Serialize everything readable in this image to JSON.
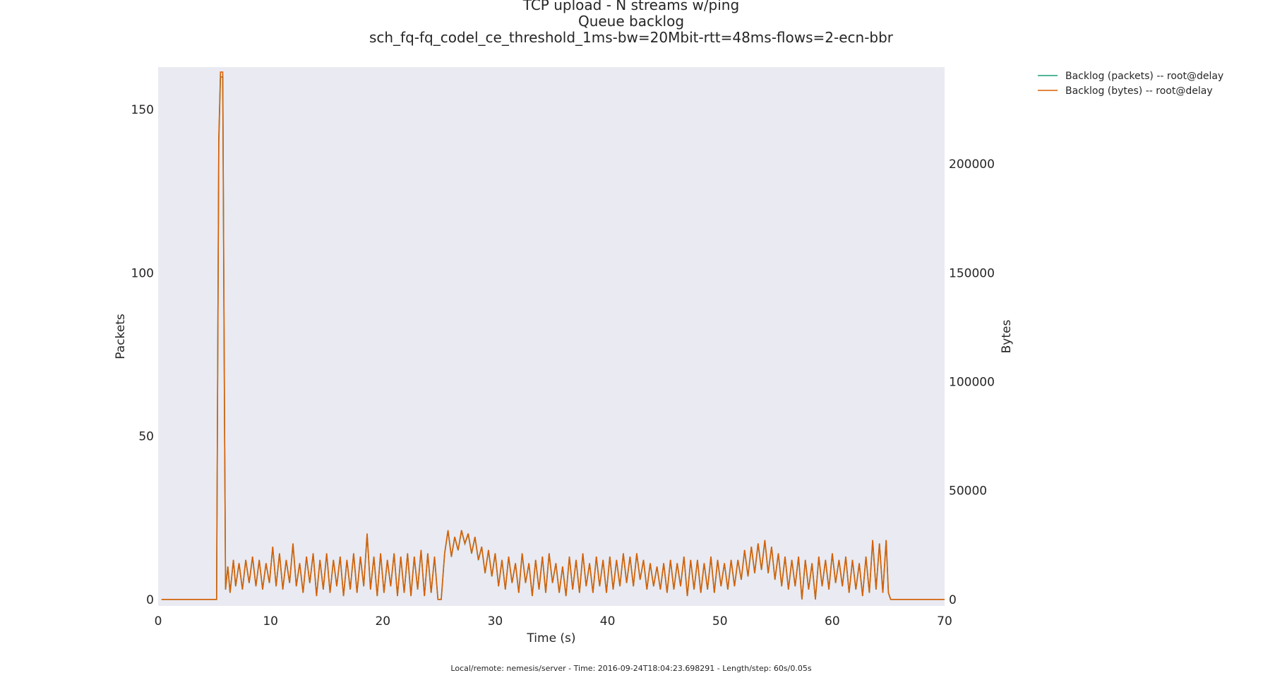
{
  "chart_data": {
    "type": "line",
    "title_lines": [
      "TCP upload - N streams w/ping",
      "Queue backlog",
      "sch_fq-fq_codel_ce_threshold_1ms-bw=20Mbit-rtt=48ms-flows=2-ecn-bbr"
    ],
    "xlabel": "Time (s)",
    "ylabel_left": "Packets",
    "ylabel_right": "Bytes",
    "xlim": [
      0,
      70
    ],
    "ylim_left": [
      -2,
      163
    ],
    "ylim_right": [
      -3000,
      244500
    ],
    "x_ticks": [
      "0",
      "10",
      "20",
      "30",
      "40",
      "50",
      "60",
      "70"
    ],
    "y_ticks_left": [
      "0",
      "50",
      "100",
      "150"
    ],
    "y_ticks_right": [
      "0",
      "50000",
      "100000",
      "150000",
      "200000"
    ],
    "grid": false,
    "background": "#eaeaf2",
    "legend_position": "outside-top-right",
    "series": [
      {
        "name": "Backlog (packets) -- root@delay",
        "axis": "left",
        "color": "#1b9e77",
        "points": [
          [
            0.3,
            0
          ],
          [
            5.2,
            0
          ],
          [
            5.4,
            140
          ],
          [
            5.55,
            160
          ],
          [
            5.75,
            160
          ],
          [
            5.9,
            60
          ],
          [
            6.0,
            3
          ],
          [
            6.2,
            10
          ],
          [
            6.4,
            2
          ],
          [
            6.7,
            12
          ],
          [
            6.9,
            4
          ],
          [
            7.2,
            11
          ],
          [
            7.5,
            3
          ],
          [
            7.8,
            12
          ],
          [
            8.1,
            5
          ],
          [
            8.4,
            13
          ],
          [
            8.7,
            4
          ],
          [
            9.0,
            12
          ],
          [
            9.3,
            3
          ],
          [
            9.6,
            11
          ],
          [
            9.9,
            5
          ],
          [
            10.2,
            16
          ],
          [
            10.5,
            4
          ],
          [
            10.8,
            14
          ],
          [
            11.1,
            3
          ],
          [
            11.4,
            12
          ],
          [
            11.7,
            5
          ],
          [
            12.0,
            17
          ],
          [
            12.3,
            4
          ],
          [
            12.6,
            11
          ],
          [
            12.9,
            2
          ],
          [
            13.2,
            13
          ],
          [
            13.5,
            5
          ],
          [
            13.8,
            14
          ],
          [
            14.1,
            1
          ],
          [
            14.4,
            12
          ],
          [
            14.7,
            3
          ],
          [
            15.0,
            14
          ],
          [
            15.3,
            2
          ],
          [
            15.6,
            12
          ],
          [
            15.9,
            4
          ],
          [
            16.2,
            13
          ],
          [
            16.5,
            1
          ],
          [
            16.8,
            12
          ],
          [
            17.1,
            3
          ],
          [
            17.4,
            14
          ],
          [
            17.7,
            2
          ],
          [
            18.0,
            13
          ],
          [
            18.3,
            4
          ],
          [
            18.6,
            20
          ],
          [
            18.9,
            3
          ],
          [
            19.2,
            13
          ],
          [
            19.5,
            1
          ],
          [
            19.8,
            14
          ],
          [
            20.1,
            2
          ],
          [
            20.4,
            12
          ],
          [
            20.7,
            4
          ],
          [
            21.0,
            14
          ],
          [
            21.3,
            1
          ],
          [
            21.6,
            13
          ],
          [
            21.9,
            2
          ],
          [
            22.2,
            14
          ],
          [
            22.5,
            1
          ],
          [
            22.8,
            13
          ],
          [
            23.1,
            3
          ],
          [
            23.4,
            15
          ],
          [
            23.7,
            1
          ],
          [
            24.0,
            14
          ],
          [
            24.3,
            2
          ],
          [
            24.6,
            13
          ],
          [
            24.9,
            0
          ],
          [
            25.2,
            0
          ],
          [
            25.5,
            14
          ],
          [
            25.8,
            21
          ],
          [
            26.1,
            13
          ],
          [
            26.4,
            19
          ],
          [
            26.7,
            15
          ],
          [
            27.0,
            21
          ],
          [
            27.3,
            17
          ],
          [
            27.6,
            20
          ],
          [
            27.9,
            14
          ],
          [
            28.2,
            19
          ],
          [
            28.5,
            12
          ],
          [
            28.8,
            16
          ],
          [
            29.1,
            8
          ],
          [
            29.4,
            15
          ],
          [
            29.7,
            7
          ],
          [
            30.0,
            14
          ],
          [
            30.3,
            4
          ],
          [
            30.6,
            12
          ],
          [
            30.9,
            3
          ],
          [
            31.2,
            13
          ],
          [
            31.5,
            5
          ],
          [
            31.8,
            11
          ],
          [
            32.1,
            2
          ],
          [
            32.4,
            14
          ],
          [
            32.7,
            5
          ],
          [
            33.0,
            11
          ],
          [
            33.3,
            1
          ],
          [
            33.6,
            12
          ],
          [
            33.9,
            3
          ],
          [
            34.2,
            13
          ],
          [
            34.5,
            2
          ],
          [
            34.8,
            14
          ],
          [
            35.1,
            5
          ],
          [
            35.4,
            11
          ],
          [
            35.7,
            2
          ],
          [
            36.0,
            10
          ],
          [
            36.3,
            1
          ],
          [
            36.6,
            13
          ],
          [
            36.9,
            3
          ],
          [
            37.2,
            12
          ],
          [
            37.5,
            2
          ],
          [
            37.8,
            14
          ],
          [
            38.1,
            4
          ],
          [
            38.4,
            11
          ],
          [
            38.7,
            2
          ],
          [
            39.0,
            13
          ],
          [
            39.3,
            4
          ],
          [
            39.6,
            12
          ],
          [
            39.9,
            2
          ],
          [
            40.2,
            13
          ],
          [
            40.5,
            3
          ],
          [
            40.8,
            12
          ],
          [
            41.1,
            4
          ],
          [
            41.4,
            14
          ],
          [
            41.7,
            5
          ],
          [
            42.0,
            13
          ],
          [
            42.3,
            4
          ],
          [
            42.6,
            14
          ],
          [
            42.9,
            6
          ],
          [
            43.2,
            12
          ],
          [
            43.5,
            3
          ],
          [
            43.8,
            11
          ],
          [
            44.1,
            4
          ],
          [
            44.4,
            10
          ],
          [
            44.7,
            3
          ],
          [
            45.0,
            11
          ],
          [
            45.3,
            2
          ],
          [
            45.6,
            12
          ],
          [
            45.9,
            3
          ],
          [
            46.2,
            11
          ],
          [
            46.5,
            4
          ],
          [
            46.8,
            13
          ],
          [
            47.1,
            1
          ],
          [
            47.4,
            12
          ],
          [
            47.7,
            3
          ],
          [
            48.0,
            12
          ],
          [
            48.3,
            2
          ],
          [
            48.6,
            11
          ],
          [
            48.9,
            3
          ],
          [
            49.2,
            13
          ],
          [
            49.5,
            2
          ],
          [
            49.8,
            12
          ],
          [
            50.1,
            4
          ],
          [
            50.4,
            11
          ],
          [
            50.7,
            3
          ],
          [
            51.0,
            12
          ],
          [
            51.3,
            4
          ],
          [
            51.6,
            12
          ],
          [
            51.9,
            6
          ],
          [
            52.2,
            15
          ],
          [
            52.5,
            7
          ],
          [
            52.8,
            16
          ],
          [
            53.1,
            8
          ],
          [
            53.4,
            17
          ],
          [
            53.7,
            9
          ],
          [
            54.0,
            18
          ],
          [
            54.3,
            8
          ],
          [
            54.6,
            16
          ],
          [
            54.9,
            6
          ],
          [
            55.2,
            14
          ],
          [
            55.5,
            4
          ],
          [
            55.8,
            13
          ],
          [
            56.1,
            3
          ],
          [
            56.4,
            12
          ],
          [
            56.7,
            4
          ],
          [
            57.0,
            13
          ],
          [
            57.3,
            0
          ],
          [
            57.6,
            12
          ],
          [
            57.9,
            3
          ],
          [
            58.2,
            11
          ],
          [
            58.5,
            0
          ],
          [
            58.8,
            13
          ],
          [
            59.1,
            4
          ],
          [
            59.4,
            12
          ],
          [
            59.7,
            3
          ],
          [
            60.0,
            14
          ],
          [
            60.3,
            5
          ],
          [
            60.6,
            12
          ],
          [
            60.9,
            4
          ],
          [
            61.2,
            13
          ],
          [
            61.5,
            2
          ],
          [
            61.8,
            12
          ],
          [
            62.1,
            3
          ],
          [
            62.4,
            11
          ],
          [
            62.7,
            1
          ],
          [
            63.0,
            13
          ],
          [
            63.3,
            2
          ],
          [
            63.6,
            18
          ],
          [
            63.9,
            3
          ],
          [
            64.2,
            17
          ],
          [
            64.5,
            2
          ],
          [
            64.8,
            18
          ],
          [
            65.0,
            2
          ],
          [
            65.2,
            0
          ],
          [
            70,
            0
          ]
        ]
      },
      {
        "name": "Backlog (bytes) -- root@delay",
        "axis": "right",
        "color": "#d95f02",
        "points_scaled_to_left": true,
        "bytes_per_packet": 1514,
        "note_values": "uses same time series as packets, multiplied by bytes_per_packet"
      }
    ]
  },
  "footer": "Local/remote: nemesis/server - Time: 2016-09-24T18:04:23.698291 - Length/step: 60s/0.05s"
}
